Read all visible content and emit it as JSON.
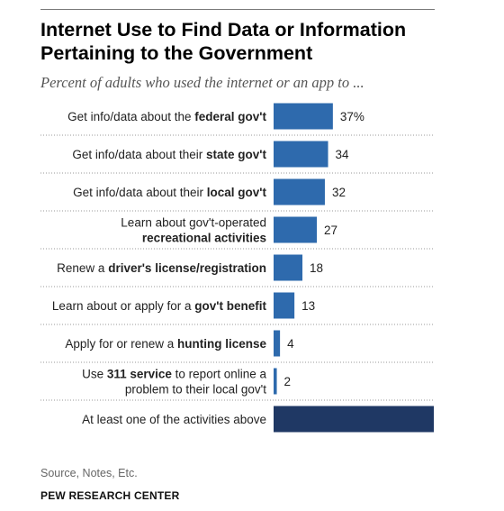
{
  "title_line1": "Internet Use to Find Data or Information",
  "title_line2": "Pertaining to the Government",
  "subtitle": "Percent of adults who used the internet or an app to ...",
  "source": "Source, Notes, Etc.",
  "brand": "PEW RESEARCH CENTER",
  "colors": {
    "bar": "#2e6aad",
    "bar_total": "#1f3864",
    "dots": "#999999"
  },
  "chart_data": {
    "type": "bar",
    "orientation": "horizontal",
    "xlim": [
      0,
      100
    ],
    "grid": false,
    "categories": [
      [
        [
          {
            "t": "Get info/data about the ",
            "b": false
          },
          {
            "t": "federal gov't",
            "b": true
          }
        ]
      ],
      [
        [
          {
            "t": "Get info/data about their ",
            "b": false
          },
          {
            "t": "state gov't",
            "b": true
          }
        ]
      ],
      [
        [
          {
            "t": "Get info/data about their ",
            "b": false
          },
          {
            "t": "local gov't",
            "b": true
          }
        ]
      ],
      [
        [
          {
            "t": "Learn about gov't-operated",
            "b": false
          }
        ],
        [
          {
            "t": "recreational activities",
            "b": true
          }
        ]
      ],
      [
        [
          {
            "t": "Renew a ",
            "b": false
          },
          {
            "t": "driver's license/registration",
            "b": true
          }
        ]
      ],
      [
        [
          {
            "t": "Learn about or apply for a ",
            "b": false
          },
          {
            "t": "gov't benefit",
            "b": true
          }
        ]
      ],
      [
        [
          {
            "t": "Apply for or renew a ",
            "b": false
          },
          {
            "t": "hunting license",
            "b": true
          }
        ]
      ],
      [
        [
          {
            "t": "Use ",
            "b": false
          },
          {
            "t": "311 service",
            "b": true
          },
          {
            "t": " to report online a",
            "b": false
          }
        ],
        [
          {
            "t": "problem to their local gov't",
            "b": false
          }
        ]
      ],
      [
        [
          {
            "t": "At least one of the activities above",
            "b": false
          }
        ]
      ]
    ],
    "values": [
      37,
      34,
      32,
      27,
      18,
      13,
      4,
      2,
      null
    ],
    "data_labels": [
      "37%",
      "34",
      "32",
      "27",
      "18",
      "13",
      "4",
      "2",
      ""
    ]
  }
}
